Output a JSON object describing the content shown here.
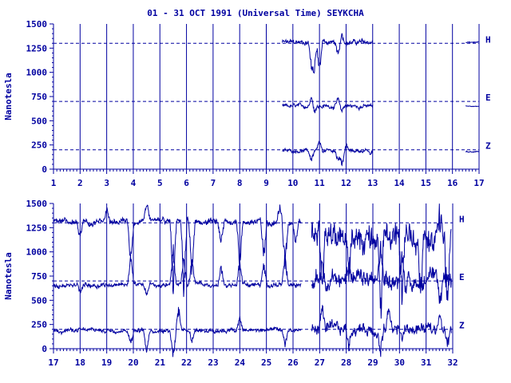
{
  "title": "01 - 31 OCT 1991 (Universal Time) SEYKCHA",
  "colors": {
    "ink": "#0000a0",
    "background": "#ffffff"
  },
  "chart_data": [
    {
      "type": "line",
      "title": "01 - 31 OCT 1991 (Universal Time) SEYKCHA",
      "xlabel": "",
      "ylabel": "Nanotesla",
      "xlim": [
        1,
        17
      ],
      "ylim": [
        0,
        1500
      ],
      "x_ticks": [
        1,
        2,
        3,
        4,
        5,
        6,
        7,
        8,
        9,
        10,
        11,
        12,
        13,
        14,
        15,
        16,
        17
      ],
      "y_ticks": [
        0,
        250,
        500,
        750,
        1000,
        1250,
        1500
      ],
      "grid": "vertical lines at each day",
      "baselines": [
        {
          "name": "H",
          "value": 1300
        },
        {
          "name": "E",
          "value": 700
        },
        {
          "name": "Z",
          "value": 200
        }
      ],
      "series": [
        {
          "name": "H",
          "segments": [
            {
              "x_range": [
                9.6,
                13.0
              ],
              "level": 1310,
              "noise": 40,
              "events": [
                [
                  10.7,
                  -260
                ],
                [
                  10.8,
                  -380
                ],
                [
                  11.0,
                  -350
                ],
                [
                  11.7,
                  -200
                ],
                [
                  11.85,
                  120
                ]
              ]
            },
            {
              "x_range": [
                16.5,
                17.0
              ],
              "level": 1310,
              "noise": 8,
              "events": []
            }
          ]
        },
        {
          "name": "E",
          "segments": [
            {
              "x_range": [
                9.6,
                13.0
              ],
              "level": 650,
              "noise": 30,
              "events": [
                [
                  10.7,
                  120
                ],
                [
                  10.8,
                  -80
                ],
                [
                  11.7,
                  90
                ],
                [
                  11.85,
                  -60
                ]
              ]
            },
            {
              "x_range": [
                16.5,
                17.0
              ],
              "level": 650,
              "noise": 6,
              "events": []
            }
          ]
        },
        {
          "name": "Z",
          "segments": [
            {
              "x_range": [
                9.6,
                13.0
              ],
              "level": 190,
              "noise": 25,
              "events": [
                [
                  10.7,
                  -150
                ],
                [
                  11.0,
                  100
                ],
                [
                  11.7,
                  -130
                ],
                [
                  11.85,
                  -160
                ],
                [
                  12.0,
                  80
                ],
                [
                  12.9,
                  -60
                ]
              ]
            },
            {
              "x_range": [
                16.5,
                17.0
              ],
              "level": 180,
              "noise": 10,
              "events": []
            }
          ]
        }
      ]
    },
    {
      "type": "line",
      "xlabel": "",
      "ylabel": "Nanotesla",
      "xlim": [
        17,
        32
      ],
      "ylim": [
        0,
        1500
      ],
      "x_ticks": [
        17,
        18,
        19,
        20,
        21,
        22,
        23,
        24,
        25,
        26,
        27,
        28,
        29,
        30,
        31,
        32
      ],
      "y_ticks": [
        0,
        250,
        500,
        750,
        1000,
        1250,
        1500
      ],
      "grid": "vertical lines at each day",
      "baselines": [
        {
          "name": "H",
          "value": 1300
        },
        {
          "name": "E",
          "value": 700
        },
        {
          "name": "Z",
          "value": 200
        }
      ],
      "series": [
        {
          "name": "H",
          "segments": [
            {
              "x_range": [
                17.0,
                26.3
              ],
              "level": 1310,
              "noise": 45,
              "events": [
                [
                  18.0,
                  -180
                ],
                [
                  19.0,
                  150
                ],
                [
                  19.9,
                  -500
                ],
                [
                  20.5,
                  250
                ],
                [
                  21.5,
                  -800
                ],
                [
                  21.9,
                  -900
                ],
                [
                  22.2,
                  -600
                ],
                [
                  23.3,
                  -300
                ],
                [
                  24.0,
                  -500
                ],
                [
                  24.9,
                  -450
                ],
                [
                  25.5,
                  200
                ],
                [
                  25.7,
                  -550
                ],
                [
                  26.1,
                  -300
                ]
              ]
            },
            {
              "x_range": [
                26.7,
                31.95
              ],
              "level": 1150,
              "noise": 220,
              "events": [
                [
                  27.1,
                  -700
                ],
                [
                  28.1,
                  -600
                ],
                [
                  29.3,
                  -900
                ],
                [
                  30.1,
                  -700
                ],
                [
                  30.8,
                  -600
                ],
                [
                  31.5,
                  250
                ],
                [
                  31.8,
                  -800
                ]
              ]
            }
          ]
        },
        {
          "name": "E",
          "segments": [
            {
              "x_range": [
                17.0,
                26.3
              ],
              "level": 660,
              "noise": 35,
              "events": [
                [
                  18.0,
                  -100
                ],
                [
                  19.9,
                  350
                ],
                [
                  20.5,
                  -150
                ],
                [
                  21.5,
                  400
                ],
                [
                  21.9,
                  350
                ],
                [
                  22.2,
                  300
                ],
                [
                  23.3,
                  250
                ],
                [
                  24.0,
                  300
                ],
                [
                  24.9,
                  250
                ],
                [
                  25.7,
                  350
                ]
              ]
            },
            {
              "x_range": [
                26.7,
                31.95
              ],
              "level": 700,
              "noise": 130,
              "events": [
                [
                  27.1,
                  350
                ],
                [
                  28.1,
                  300
                ],
                [
                  29.3,
                  400
                ],
                [
                  30.1,
                  350
                ],
                [
                  31.5,
                  -300
                ]
              ]
            }
          ]
        },
        {
          "name": "Z",
          "segments": [
            {
              "x_range": [
                17.0,
                26.3
              ],
              "level": 190,
              "noise": 30,
              "events": [
                [
                  19.9,
                  -180
                ],
                [
                  20.5,
                  -250
                ],
                [
                  21.5,
                  -350
                ],
                [
                  21.7,
                  250
                ],
                [
                  22.2,
                  -150
                ],
                [
                  24.0,
                  150
                ],
                [
                  25.7,
                  -180
                ]
              ]
            },
            {
              "x_range": [
                26.7,
                31.95
              ],
              "level": 200,
              "noise": 90,
              "events": [
                [
                  27.1,
                  300
                ],
                [
                  28.1,
                  -250
                ],
                [
                  29.3,
                  -300
                ],
                [
                  29.6,
                  250
                ],
                [
                  30.1,
                  -150
                ],
                [
                  31.5,
                  200
                ],
                [
                  31.8,
                  -250
                ]
              ]
            }
          ]
        }
      ]
    }
  ]
}
